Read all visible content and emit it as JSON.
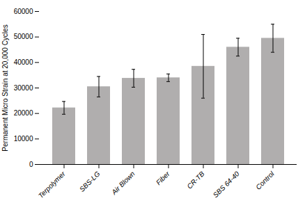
{
  "chart_data": {
    "type": "bar",
    "categories": [
      "Terpolymer",
      "SBS-LG",
      "Air Blown",
      "Fiber",
      "CR-TB",
      "SBS 64-40",
      "Control"
    ],
    "values": [
      22200,
      30500,
      33800,
      34000,
      38500,
      46000,
      49500
    ],
    "errors": [
      2500,
      4000,
      3500,
      1500,
      12500,
      3500,
      5500
    ],
    "color": "#b0aeae",
    "ylabel": "Permanent Micro Strain at 20,000 Cycles",
    "ylim": [
      0,
      60000
    ],
    "yticks": [
      0,
      10000,
      20000,
      30000,
      40000,
      50000,
      60000
    ],
    "grid": false
  }
}
